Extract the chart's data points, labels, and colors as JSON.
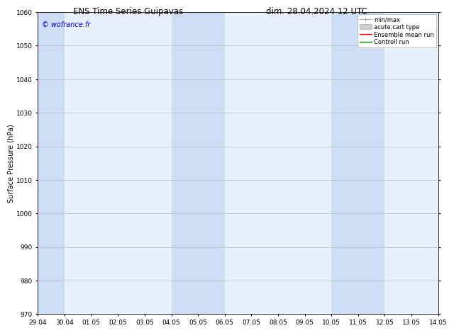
{
  "title_left": "ENS Time Series Guipavas",
  "title_right": "dim. 28.04.2024 12 UTC",
  "ylabel": "Surface Pressure (hPa)",
  "ylim": [
    970,
    1060
  ],
  "yticks": [
    970,
    980,
    990,
    1000,
    1010,
    1020,
    1030,
    1040,
    1050,
    1060
  ],
  "xtick_labels": [
    "29.04",
    "30.04",
    "01.05",
    "02.05",
    "03.05",
    "04.05",
    "05.05",
    "06.05",
    "07.05",
    "08.05",
    "09.05",
    "10.05",
    "11.05",
    "12.05",
    "13.05",
    "14.05"
  ],
  "background_color": "#ffffff",
  "plot_background": "#e8f0fb",
  "shaded_regions": [
    {
      "xstart": 0,
      "xend": 1,
      "color": "#ccddf5"
    },
    {
      "xstart": 5,
      "xend": 7,
      "color": "#ccddf5"
    },
    {
      "xstart": 11,
      "xend": 13,
      "color": "#ccddf5"
    }
  ],
  "watermark_text": "© wofrance.fr",
  "watermark_color": "#0000cc",
  "legend_labels": [
    "min/max",
    "acute;cart type",
    "Ensemble mean run",
    "Controll run"
  ],
  "legend_colors": [
    "#aaaaaa",
    "#cccccc",
    "#ff0000",
    "#008000"
  ],
  "grid_color": "#bbbbcc",
  "title_fontsize": 8.5,
  "ylabel_fontsize": 7,
  "tick_fontsize": 6.5,
  "legend_fontsize": 6,
  "watermark_fontsize": 7
}
